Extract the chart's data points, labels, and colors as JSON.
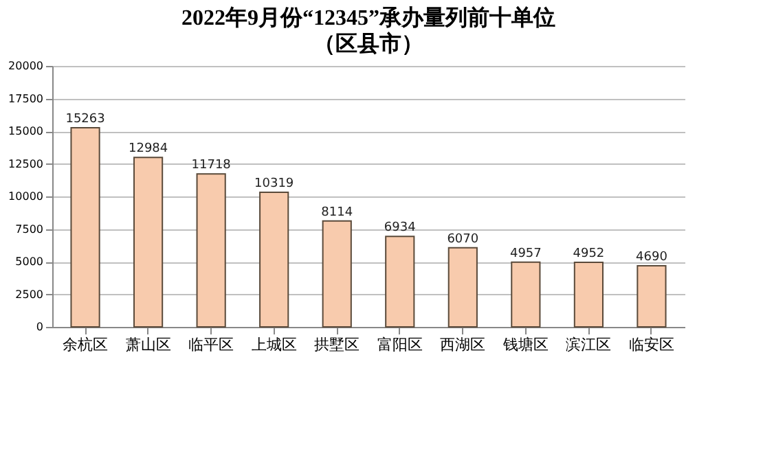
{
  "chart_data": {
    "type": "bar",
    "title": "2022年9月份“12345”承办量列前十单位",
    "subtitle": "（区县市）",
    "categories": [
      "余杭区",
      "萧山区",
      "临平区",
      "上城区",
      "拱墅区",
      "富阳区",
      "西湖区",
      "钱塘区",
      "滨江区",
      "临安区"
    ],
    "values": [
      15263,
      12984,
      11718,
      10319,
      8114,
      6934,
      6070,
      4957,
      4952,
      4690
    ],
    "color": "#f8cbad",
    "data_labels": true,
    "ylim": [
      0,
      20000
    ],
    "yticks": [
      0,
      2500,
      5000,
      7500,
      10000,
      12500,
      15000,
      17500,
      20000
    ],
    "grid": "y"
  }
}
